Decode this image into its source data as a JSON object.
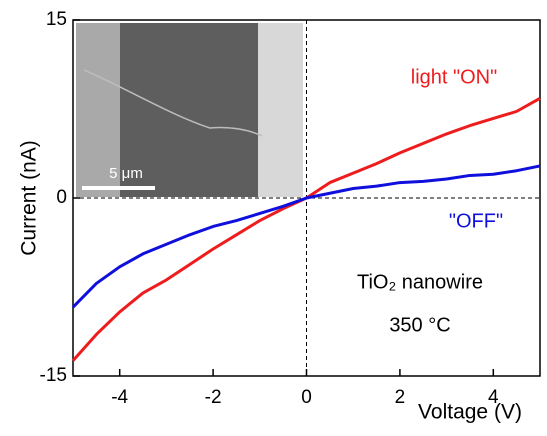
{
  "chart_data": {
    "type": "line",
    "x_label": "Voltage (V)",
    "y_label": "Current (nA)",
    "x": [
      -5,
      -4.5,
      -4,
      -3.5,
      -3,
      -2.5,
      -2,
      -1.5,
      -1,
      -0.5,
      0,
      0.5,
      1,
      1.5,
      2,
      2.5,
      3,
      3.5,
      4,
      4.5,
      5
    ],
    "series": [
      {
        "name": "light \"ON\"",
        "color": "#ee1c1c",
        "values": [
          -13.7,
          -11.5,
          -9.6,
          -8.0,
          -6.9,
          -5.6,
          -4.3,
          -3.1,
          -1.9,
          -0.9,
          0,
          1.3,
          2.1,
          2.9,
          3.8,
          4.6,
          5.4,
          6.1,
          6.7,
          7.3,
          8.4
        ]
      },
      {
        "name": "\"OFF\"",
        "color": "#1010dd",
        "values": [
          -9.2,
          -7.2,
          -5.8,
          -4.7,
          -3.9,
          -3.1,
          -2.4,
          -1.9,
          -1.3,
          -0.7,
          0,
          0.4,
          0.8,
          1.0,
          1.3,
          1.4,
          1.6,
          1.9,
          2.0,
          2.3,
          2.7
        ]
      }
    ],
    "xlim": [
      -5,
      5
    ],
    "ylim": [
      -15,
      15
    ],
    "xticks": [
      -4,
      -2,
      0,
      2,
      4
    ],
    "yticks": [
      -15,
      0,
      15
    ],
    "annotations": [
      "TiO₂ nanowire",
      "350 °C"
    ],
    "inset_scale_label": "5 μm"
  }
}
